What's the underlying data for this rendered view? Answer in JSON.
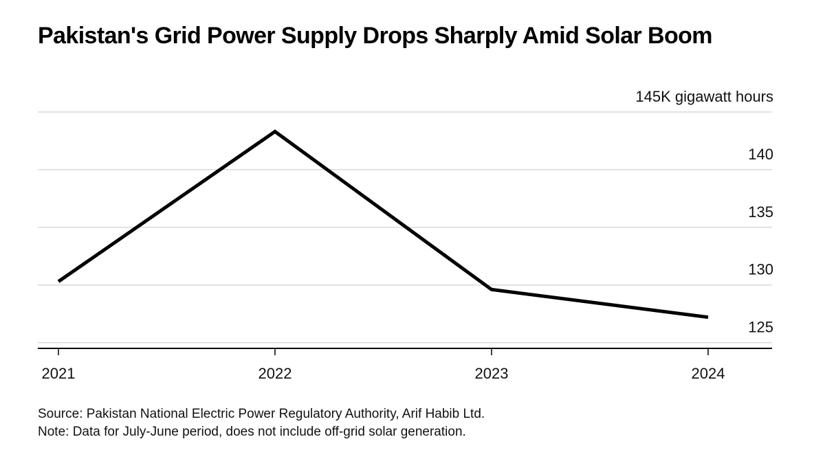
{
  "chart_data": {
    "type": "line",
    "title": "Pakistan's Grid Power Supply Drops Sharply Amid Solar Boom",
    "unit_label": "145K gigawatt hours",
    "categories": [
      "2021",
      "2022",
      "2023",
      "2024"
    ],
    "series": [
      {
        "name": "Grid power supply",
        "values": [
          130.3,
          143.3,
          129.6,
          127.2
        ],
        "color": "#000000"
      }
    ],
    "y_ticks": [
      125,
      130,
      135,
      140,
      145
    ],
    "y_tick_labels": [
      "125",
      "130",
      "135",
      "140",
      "145K gigawatt hours"
    ],
    "ylim": [
      124.5,
      145
    ],
    "xlabel": "",
    "ylabel": "",
    "grid": true,
    "grid_color": "#d9d9d9",
    "axis_color": "#000000",
    "y_axis_position": "right"
  },
  "footer": {
    "source": "Source: Pakistan National Electric Power Regulatory Authority, Arif Habib Ltd.",
    "note": "Note: Data for July-June period, does not include off-grid solar generation."
  }
}
